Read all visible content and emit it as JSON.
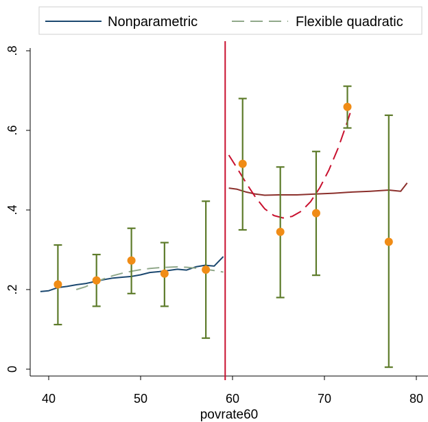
{
  "chart_data": {
    "type": "scatter",
    "title": "",
    "xlabel": "povrate60",
    "ylabel": "",
    "xlim": [
      38,
      81
    ],
    "ylim": [
      -0.01,
      0.8
    ],
    "x_ticks": [
      40,
      50,
      60,
      70,
      80
    ],
    "x_tick_labels": [
      "40",
      "50",
      "60",
      "70",
      "80"
    ],
    "y_ticks": [
      0,
      0.2,
      0.4,
      0.6,
      0.8
    ],
    "y_tick_labels": [
      "0",
      ".2",
      ".4",
      ".6",
      ".8"
    ],
    "grid": false,
    "legend_position": "top",
    "cutoff": {
      "x": 59.2,
      "color": "#c8102e"
    },
    "series": [
      {
        "name": "Nonparametric",
        "kind": "line",
        "style": "solid",
        "color": "#1a476f",
        "points": [
          [
            39.1,
            0.195
          ],
          [
            40,
            0.197
          ],
          [
            41,
            0.205
          ],
          [
            42,
            0.208
          ],
          [
            43,
            0.212
          ],
          [
            44,
            0.215
          ],
          [
            45,
            0.22
          ],
          [
            46,
            0.225
          ],
          [
            47,
            0.229
          ],
          [
            48,
            0.231
          ],
          [
            49,
            0.233
          ],
          [
            50,
            0.237
          ],
          [
            51,
            0.243
          ],
          [
            52,
            0.245
          ],
          [
            53,
            0.248
          ],
          [
            54,
            0.251
          ],
          [
            55,
            0.249
          ],
          [
            56,
            0.257
          ],
          [
            57,
            0.261
          ],
          [
            58,
            0.259
          ],
          [
            59,
            0.283
          ]
        ]
      },
      {
        "name": "Flexible quadratic",
        "kind": "line",
        "style": "dashed",
        "color": "#90a88a",
        "points": [
          [
            43,
            0.2
          ],
          [
            44,
            0.207
          ],
          [
            45,
            0.218
          ],
          [
            46,
            0.227
          ],
          [
            47,
            0.235
          ],
          [
            48,
            0.241
          ],
          [
            49,
            0.246
          ],
          [
            50,
            0.25
          ],
          [
            51,
            0.253
          ],
          [
            52,
            0.255
          ],
          [
            53,
            0.256
          ],
          [
            54,
            0.257
          ],
          [
            55,
            0.256
          ],
          [
            56,
            0.254
          ],
          [
            57,
            0.251
          ],
          [
            58,
            0.248
          ],
          [
            59,
            0.244
          ]
        ]
      },
      {
        "name": "",
        "kind": "line",
        "style": "solid",
        "color": "#8b2f2b",
        "points": [
          [
            59.6,
            0.455
          ],
          [
            60.5,
            0.452
          ],
          [
            61.5,
            0.445
          ],
          [
            62.5,
            0.44
          ],
          [
            63.5,
            0.437
          ],
          [
            65,
            0.438
          ],
          [
            67,
            0.438
          ],
          [
            69,
            0.44
          ],
          [
            71,
            0.442
          ],
          [
            73,
            0.445
          ],
          [
            75,
            0.447
          ],
          [
            77,
            0.45
          ],
          [
            78.3,
            0.447
          ],
          [
            79,
            0.468
          ]
        ]
      },
      {
        "name": "",
        "kind": "line",
        "style": "dashed",
        "color": "#c8102e",
        "points": [
          [
            59.6,
            0.538
          ],
          [
            60.5,
            0.505
          ],
          [
            61.5,
            0.467
          ],
          [
            62.5,
            0.432
          ],
          [
            63.5,
            0.403
          ],
          [
            64.5,
            0.386
          ],
          [
            65.5,
            0.38
          ],
          [
            66.5,
            0.384
          ],
          [
            67.5,
            0.397
          ],
          [
            68.5,
            0.421
          ],
          [
            69.5,
            0.456
          ],
          [
            70.5,
            0.501
          ],
          [
            71.5,
            0.556
          ],
          [
            72.5,
            0.622
          ],
          [
            73,
            0.658
          ]
        ]
      }
    ],
    "binned_means": {
      "marker_color": "#f08c16",
      "ci_color": "#5d7b2a",
      "points": [
        {
          "x": 41,
          "y": 0.213,
          "lo": 0.112,
          "hi": 0.312
        },
        {
          "x": 45.2,
          "y": 0.223,
          "lo": 0.158,
          "hi": 0.288
        },
        {
          "x": 49,
          "y": 0.273,
          "lo": 0.19,
          "hi": 0.354
        },
        {
          "x": 52.6,
          "y": 0.24,
          "lo": 0.158,
          "hi": 0.318
        },
        {
          "x": 57.1,
          "y": 0.25,
          "lo": 0.078,
          "hi": 0.422
        },
        {
          "x": 61.1,
          "y": 0.516,
          "lo": 0.35,
          "hi": 0.68
        },
        {
          "x": 65.2,
          "y": 0.345,
          "lo": 0.18,
          "hi": 0.508
        },
        {
          "x": 69.1,
          "y": 0.392,
          "lo": 0.236,
          "hi": 0.547
        },
        {
          "x": 72.5,
          "y": 0.659,
          "lo": 0.606,
          "hi": 0.711
        },
        {
          "x": 77,
          "y": 0.32,
          "lo": 0.005,
          "hi": 0.638
        }
      ]
    }
  }
}
